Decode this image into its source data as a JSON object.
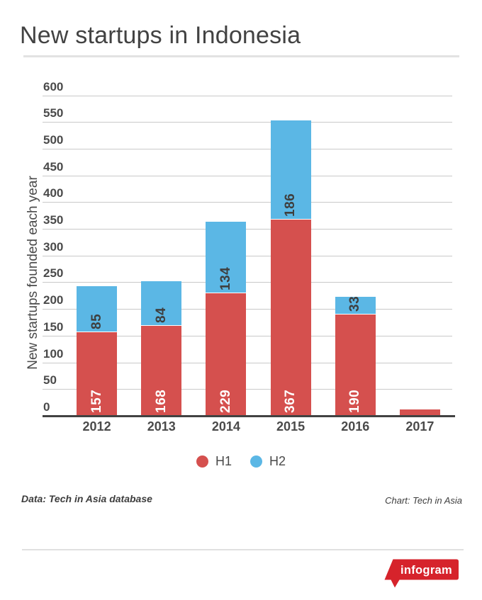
{
  "header": {
    "title": "New startups in Indonesia"
  },
  "chart_data": {
    "type": "bar",
    "stacked": true,
    "orientation": "vertical",
    "title": "New startups in Indonesia",
    "ylabel": "New startups founded each year",
    "xlabel": "",
    "categories": [
      "2012",
      "2013",
      "2014",
      "2015",
      "2016",
      "2017"
    ],
    "series": [
      {
        "name": "H1",
        "color": "#d5504e",
        "label_color": "#ffffff",
        "values": [
          157,
          168,
          229,
          367,
          190,
          12
        ],
        "labels": [
          "157",
          "168",
          "229",
          "367",
          "190",
          ""
        ]
      },
      {
        "name": "H2",
        "color": "#5bb7e5",
        "label_color": "#3f3f3f",
        "values": [
          85,
          84,
          134,
          186,
          33,
          0
        ],
        "labels": [
          "85",
          "84",
          "134",
          "186",
          "33",
          ""
        ]
      }
    ],
    "ylim": [
      0,
      600
    ],
    "yticks": [
      0,
      50,
      100,
      150,
      200,
      250,
      300,
      350,
      400,
      450,
      500,
      550,
      600
    ],
    "grid": "horizontal",
    "legend_position": "bottom"
  },
  "footer": {
    "source_left": "Data: Tech in Asia database",
    "credit_right": "Chart: Tech in Asia"
  },
  "branding": {
    "logo_text": "infogram",
    "logo_color": "#d6232b"
  },
  "colors": {
    "title_text": "#424242",
    "axis_text": "#4a4a4a",
    "gridline": "#c9c9c9",
    "baseline": "#424242",
    "divider": "#e0e0e0",
    "background": "#ffffff"
  }
}
